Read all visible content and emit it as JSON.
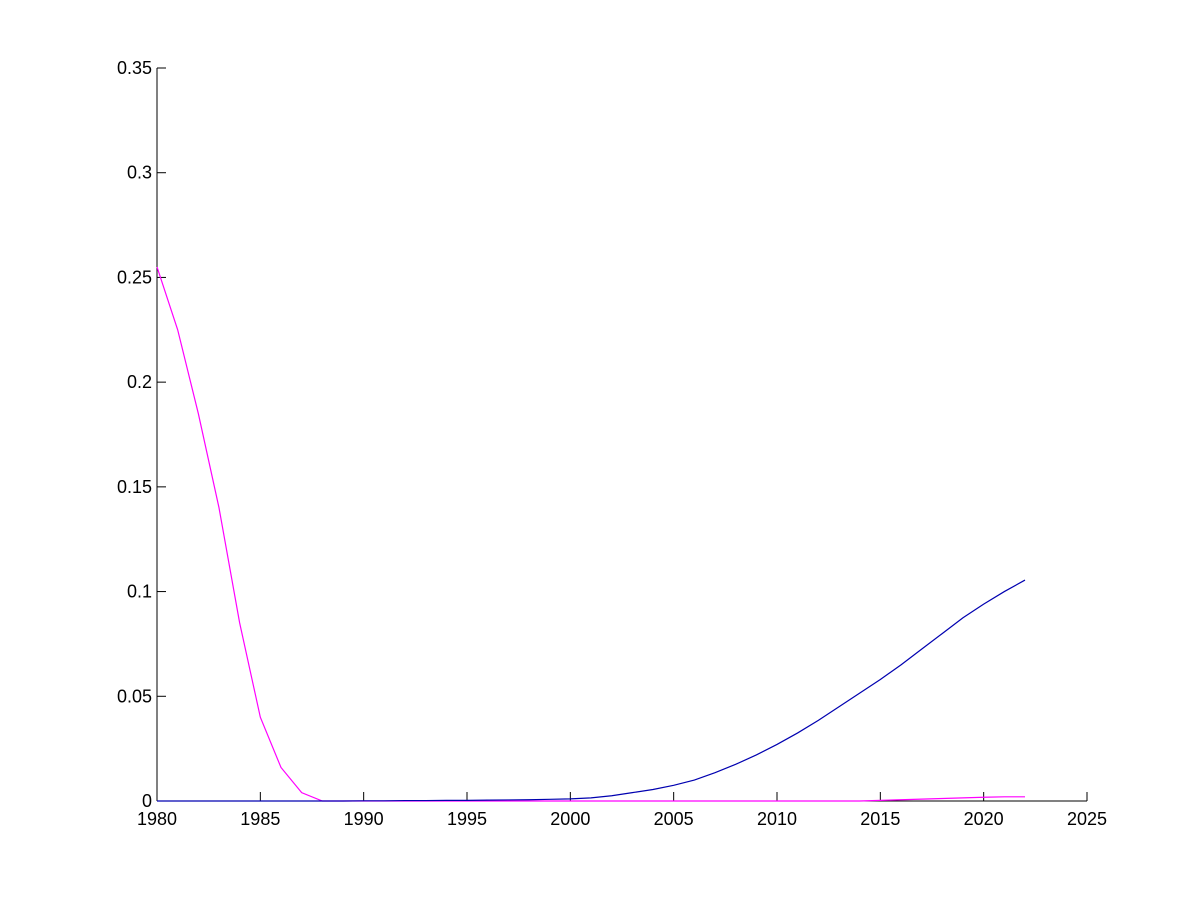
{
  "chart_data": {
    "type": "line",
    "x": [
      1980,
      1981,
      1982,
      1983,
      1984,
      1985,
      1986,
      1987,
      1988,
      1989,
      1990,
      1991,
      1992,
      1993,
      1994,
      1995,
      1996,
      1997,
      1998,
      1999,
      2000,
      2001,
      2002,
      2003,
      2004,
      2005,
      2006,
      2007,
      2008,
      2009,
      2010,
      2011,
      2012,
      2013,
      2014,
      2015,
      2016,
      2017,
      2018,
      2019,
      2020,
      2021,
      2022
    ],
    "series": [
      {
        "color": "#ff00ff",
        "values": [
          0.255,
          0.225,
          0.185,
          0.14,
          0.085,
          0.04,
          0.016,
          0.004,
          0,
          0,
          0,
          0,
          0,
          0,
          0,
          0,
          0,
          0,
          0,
          0,
          0,
          0,
          0,
          0,
          0,
          0,
          0,
          0,
          0,
          0,
          0,
          0,
          0,
          0,
          0,
          0.0003,
          0.0006,
          0.0009,
          0.0012,
          0.0015,
          0.0018,
          0.002,
          0.002
        ]
      },
      {
        "color": "#0000b0",
        "values": [
          0,
          0,
          0,
          0,
          0,
          0,
          0,
          0,
          0,
          0,
          0.0001,
          0.0001,
          0.0002,
          0.0002,
          0.0003,
          0.0003,
          0.0004,
          0.0005,
          0.0006,
          0.0008,
          0.001,
          0.0015,
          0.0025,
          0.004,
          0.0055,
          0.0075,
          0.01,
          0.0135,
          0.0175,
          0.022,
          0.027,
          0.0325,
          0.0385,
          0.045,
          0.0515,
          0.058,
          0.065,
          0.0725,
          0.08,
          0.0875,
          0.094,
          0.1,
          0.1055
        ]
      }
    ],
    "xlim": [
      1980,
      2025
    ],
    "xticks": [
      1980,
      1985,
      1990,
      1995,
      2000,
      2005,
      2010,
      2015,
      2020,
      2025
    ],
    "ylim": [
      0,
      0.35
    ],
    "yticks": [
      0,
      0.05,
      0.1,
      0.15,
      0.2,
      0.25,
      0.3,
      0.35
    ]
  }
}
